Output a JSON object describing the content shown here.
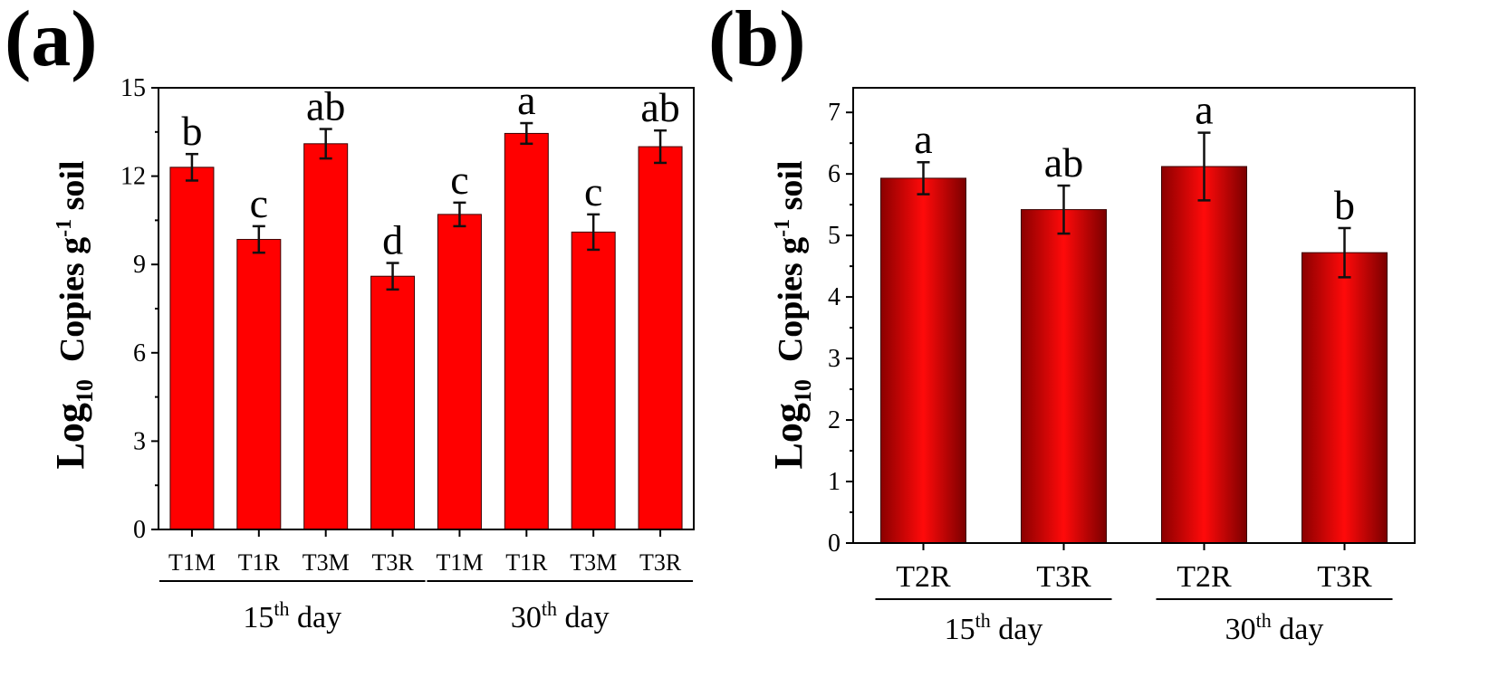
{
  "colors": {
    "bar": "#ff0000",
    "bar_dark": "#8b0000",
    "axis": "#000000"
  },
  "chart_data": [
    {
      "type": "bar",
      "panel_label": "(a)",
      "ylabel": {
        "prefix": "Log",
        "sub": "10",
        "main": "Copies g",
        "sup": "-1",
        "suffix": " soil"
      },
      "ylim": [
        0,
        15
      ],
      "yticks": [
        0,
        3,
        6,
        9,
        12,
        15
      ],
      "categories": [
        "T1M",
        "T1R",
        "T3M",
        "T3R",
        "T1M",
        "T1R",
        "T3M",
        "T3R"
      ],
      "values": [
        12.3,
        9.85,
        13.1,
        8.6,
        10.7,
        13.45,
        10.1,
        13.0
      ],
      "errors": [
        0.45,
        0.45,
        0.5,
        0.45,
        0.4,
        0.35,
        0.6,
        0.55
      ],
      "significance": [
        "b",
        "c",
        "ab",
        "d",
        "c",
        "a",
        "c",
        "ab"
      ],
      "groups": [
        {
          "pre": "15",
          "sup": "th",
          "post": " day",
          "span": [
            0,
            3
          ]
        },
        {
          "pre": "30",
          "sup": "th",
          "post": " day",
          "span": [
            4,
            7
          ]
        }
      ]
    },
    {
      "type": "bar",
      "panel_label": "(b)",
      "ylabel": {
        "prefix": "Log",
        "sub": "10",
        "main": "Copies g",
        "sup": "-1",
        "suffix": " soil"
      },
      "ylim": [
        0,
        7.4
      ],
      "yticks": [
        0,
        1,
        2,
        3,
        4,
        5,
        6,
        7
      ],
      "categories": [
        "T2R",
        "T3R",
        "T2R",
        "T3R"
      ],
      "values": [
        5.93,
        5.42,
        6.12,
        4.72
      ],
      "errors": [
        0.26,
        0.39,
        0.55,
        0.4
      ],
      "significance": [
        "a",
        "ab",
        "a",
        "b"
      ],
      "groups": [
        {
          "pre": "15",
          "sup": "th",
          "post": " day",
          "span": [
            0,
            1
          ]
        },
        {
          "pre": "30",
          "sup": "th",
          "post": " day",
          "span": [
            2,
            3
          ]
        }
      ]
    }
  ]
}
